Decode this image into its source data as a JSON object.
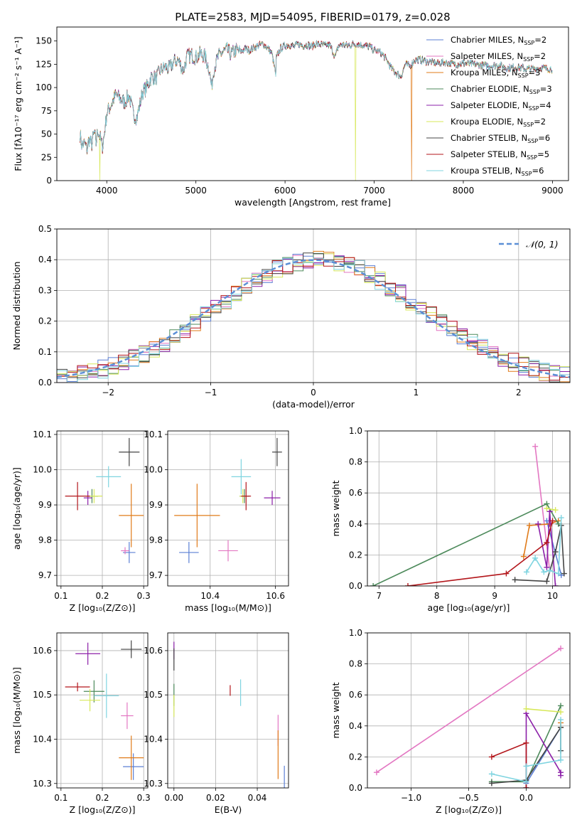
{
  "colors": {
    "series": [
      "#5b7fd4",
      "#e377c2",
      "#e07b1a",
      "#4d8a5b",
      "#8b1fa8",
      "#d7e85a",
      "#444444",
      "#b3161b",
      "#7fd4e0"
    ]
  },
  "chart_data": [
    {
      "id": "spectrum",
      "type": "line",
      "title": "PLATE=2583, MJD=54095, FIBERID=0179, z=0.028",
      "xlabel": "wavelength [Angstrom, rest frame]",
      "ylabel": "Flux [fλ10⁻¹⁷ erg cm⁻² s⁻¹ A⁻¹]",
      "xlim": [
        3440,
        9180
      ],
      "ylim": [
        0,
        165
      ],
      "xticks": [
        4000,
        5000,
        6000,
        7000,
        8000,
        9000
      ],
      "yticks": [
        0,
        25,
        50,
        75,
        100,
        125,
        150
      ],
      "grid": false,
      "legend_position": "top-right",
      "spectrum_x": [
        3700,
        3720,
        3750,
        3780,
        3800,
        3830,
        3860,
        3880,
        3900,
        3930,
        3950,
        3970,
        4000,
        4050,
        4100,
        4150,
        4200,
        4250,
        4300,
        4340,
        4400,
        4450,
        4500,
        4550,
        4600,
        4650,
        4700,
        4750,
        4800,
        4860,
        4900,
        4950,
        5000,
        5050,
        5100,
        5150,
        5175,
        5200,
        5250,
        5300,
        5350,
        5400,
        5450,
        5500,
        5550,
        5600,
        5650,
        5700,
        5750,
        5800,
        5850,
        5890,
        5895,
        5900,
        5950,
        6000,
        6050,
        6100,
        6150,
        6200,
        6250,
        6300,
        6350,
        6400,
        6450,
        6500,
        6563,
        6600,
        6650,
        6700,
        6750,
        6800,
        6850,
        6900,
        6950,
        7000,
        7050,
        7100,
        7150,
        7200,
        7250,
        7300,
        7350,
        7400,
        7450,
        7500,
        7600,
        7700,
        7800,
        7900,
        8000,
        8100,
        8200,
        8300,
        8400,
        8500,
        8600,
        8700,
        8800,
        8900,
        9000
      ],
      "spectrum_y": [
        50,
        38,
        40,
        33,
        45,
        38,
        52,
        40,
        55,
        45,
        36,
        48,
        72,
        82,
        92,
        88,
        84,
        92,
        70,
        68,
        95,
        100,
        112,
        110,
        118,
        122,
        120,
        127,
        130,
        118,
        133,
        135,
        132,
        136,
        134,
        120,
        100,
        120,
        133,
        138,
        140,
        136,
        140,
        138,
        142,
        140,
        143,
        145,
        147,
        143,
        137,
        118,
        105,
        132,
        142,
        145,
        146,
        144,
        147,
        145,
        146,
        144,
        147,
        146,
        145,
        146,
        133,
        145,
        146,
        145,
        146,
        147,
        146,
        145,
        144,
        140,
        139,
        135,
        128,
        120,
        115,
        112,
        125,
        123,
        129,
        130,
        128,
        126,
        127,
        125,
        126,
        125,
        124,
        123,
        124,
        121,
        122,
        120,
        120,
        121,
        120
      ],
      "dropouts": [
        {
          "series": 5,
          "x": 3920
        },
        {
          "series": 5,
          "x": 6790
        },
        {
          "series": 2,
          "x": 7420
        }
      ],
      "legend": [
        {
          "label": "Chabrier MILES, N",
          "sub": "SSP",
          "suffix": "=2"
        },
        {
          "label": "Salpeter MILES, N",
          "sub": "SSP",
          "suffix": "=2"
        },
        {
          "label": "Kroupa MILES, N",
          "sub": "SSP",
          "suffix": "=3"
        },
        {
          "label": "Chabrier ELODIE, N",
          "sub": "SSP",
          "suffix": "=3"
        },
        {
          "label": "Salpeter ELODIE, N",
          "sub": "SSP",
          "suffix": "=4"
        },
        {
          "label": "Kroupa ELODIE, N",
          "sub": "SSP",
          "suffix": "=2"
        },
        {
          "label": "Chabrier STELIB, N",
          "sub": "SSP",
          "suffix": "=6"
        },
        {
          "label": "Salpeter STELIB, N",
          "sub": "SSP",
          "suffix": "=5"
        },
        {
          "label": "Kroupa STELIB, N",
          "sub": "SSP",
          "suffix": "=6"
        }
      ]
    },
    {
      "id": "residuals",
      "type": "bar",
      "xlabel": "(data-model)/error",
      "ylabel": "Normed distribution",
      "xlim": [
        -2.5,
        2.5
      ],
      "ylim": [
        0,
        0.5
      ],
      "xticks": [
        -2,
        -1,
        0,
        1,
        2
      ],
      "yticks": [
        0.0,
        0.1,
        0.2,
        0.3,
        0.4,
        0.5
      ],
      "grid": true,
      "legend_position": "top-right",
      "legend_label": "𝒩(0, 1)",
      "bin_width": 0.1,
      "bin_start": -2.5
    },
    {
      "id": "age-vs-Z",
      "type": "scatter",
      "xlabel": "Z [log₁₀(Z/Z⊙)]",
      "ylabel": "age  [log₁₀(age/yr)]",
      "xlim": [
        0.09,
        0.31
      ],
      "ylim": [
        9.67,
        10.11
      ],
      "xticks": [
        0.1,
        0.2,
        0.3
      ],
      "yticks": [
        9.7,
        9.8,
        9.9,
        10.0,
        10.1
      ],
      "grid": true,
      "points": [
        {
          "series": 0,
          "x": 0.265,
          "y": 9.765,
          "xerr": 0.015,
          "yerr": 0.03
        },
        {
          "series": 1,
          "x": 0.255,
          "y": 9.77,
          "xerr": 0.01,
          "yerr": 0.01
        },
        {
          "series": 2,
          "x": 0.27,
          "y": 9.87,
          "xerr": 0.03,
          "yerr": 0.09
        },
        {
          "series": 3,
          "x": 0.175,
          "y": 9.925,
          "xerr": 0.015,
          "yerr": 0.02
        },
        {
          "series": 4,
          "x": 0.165,
          "y": 9.92,
          "xerr": 0.01,
          "yerr": 0.02
        },
        {
          "series": 5,
          "x": 0.18,
          "y": 9.925,
          "xerr": 0.02,
          "yerr": 0.02
        },
        {
          "series": 6,
          "x": 0.265,
          "y": 10.05,
          "xerr": 0.025,
          "yerr": 0.04
        },
        {
          "series": 7,
          "x": 0.14,
          "y": 9.925,
          "xerr": 0.03,
          "yerr": 0.04
        },
        {
          "series": 8,
          "x": 0.215,
          "y": 9.98,
          "xerr": 0.03,
          "yerr": 0.03
        }
      ]
    },
    {
      "id": "age-vs-mass",
      "type": "scatter",
      "xlabel": "mass [log₁₀(M/M⊙)]",
      "ylabel": "",
      "xlim": [
        10.27,
        10.64
      ],
      "ylim": [
        9.67,
        10.11
      ],
      "xticks": [
        10.4,
        10.6
      ],
      "yticks": [
        9.7,
        9.8,
        9.9,
        10.0,
        10.1
      ],
      "grid": true,
      "points": [
        {
          "series": 0,
          "x": 10.335,
          "y": 9.765,
          "xerr": 0.03,
          "yerr": 0.03
        },
        {
          "series": 1,
          "x": 10.455,
          "y": 9.77,
          "xerr": 0.03,
          "yerr": 0.03
        },
        {
          "series": 2,
          "x": 10.36,
          "y": 9.87,
          "xerr": 0.07,
          "yerr": 0.09
        },
        {
          "series": 3,
          "x": 10.505,
          "y": 9.925,
          "xerr": 0.015,
          "yerr": 0.02
        },
        {
          "series": 4,
          "x": 10.59,
          "y": 9.92,
          "xerr": 0.025,
          "yerr": 0.02
        },
        {
          "series": 5,
          "x": 10.5,
          "y": 9.925,
          "xerr": 0.01,
          "yerr": 0.02
        },
        {
          "series": 6,
          "x": 10.605,
          "y": 10.05,
          "xerr": 0.015,
          "yerr": 0.04
        },
        {
          "series": 7,
          "x": 10.51,
          "y": 9.925,
          "xerr": 0.015,
          "yerr": 0.04
        },
        {
          "series": 8,
          "x": 10.495,
          "y": 9.98,
          "xerr": 0.03,
          "yerr": 0.05
        }
      ]
    },
    {
      "id": "weight-vs-age",
      "type": "line",
      "xlabel": "age  [log₁₀(age/yr)]",
      "ylabel": "mass weight",
      "xlim": [
        6.8,
        10.3
      ],
      "ylim": [
        0.0,
        1.0
      ],
      "xticks": [
        7,
        8,
        9,
        10
      ],
      "yticks": [
        0.0,
        0.2,
        0.4,
        0.6,
        0.8,
        1.0
      ],
      "grid": true,
      "series": [
        {
          "series": 0,
          "x": [
            9.9,
            10.15
          ],
          "y": [
            0.42,
            0.07
          ]
        },
        {
          "series": 1,
          "x": [
            9.7,
            9.95
          ],
          "y": [
            0.9,
            0.1
          ]
        },
        {
          "series": 2,
          "x": [
            9.5,
            9.6,
            9.95,
            10.1
          ],
          "y": [
            0.19,
            0.39,
            0.4,
            0.42
          ]
        },
        {
          "series": 3,
          "x": [
            6.9,
            9.9,
            10.1
          ],
          "y": [
            0.0,
            0.53,
            0.4
          ]
        },
        {
          "series": 4,
          "x": [
            9.75,
            9.9,
            9.95,
            10.05
          ],
          "y": [
            0.4,
            0.12,
            0.48,
            0.0
          ]
        },
        {
          "series": 5,
          "x": [
            9.9,
            10.05
          ],
          "y": [
            0.5,
            0.49
          ]
        },
        {
          "series": 6,
          "x": [
            9.35,
            9.9,
            10.05,
            10.15,
            10.2
          ],
          "y": [
            0.04,
            0.03,
            0.22,
            0.39,
            0.08
          ]
        },
        {
          "series": 7,
          "x": [
            7.5,
            9.2,
            9.9,
            10.0
          ],
          "y": [
            0.0,
            0.08,
            0.28,
            0.42
          ]
        },
        {
          "series": 8,
          "x": [
            9.55,
            9.7,
            9.85,
            9.95,
            10.1,
            10.15
          ],
          "y": [
            0.09,
            0.18,
            0.09,
            0.1,
            0.08,
            0.44
          ]
        }
      ]
    },
    {
      "id": "mass-vs-Z",
      "type": "scatter",
      "xlabel": "Z [log₁₀(Z/Z⊙)]",
      "ylabel": "mass [log₁₀(M/M⊙)]",
      "xlim": [
        0.09,
        0.31
      ],
      "ylim": [
        10.29,
        10.64
      ],
      "xticks": [
        0.1,
        0.2,
        0.3
      ],
      "yticks": [
        10.3,
        10.4,
        10.5,
        10.6
      ],
      "grid": true,
      "points": [
        {
          "series": 0,
          "x": 0.275,
          "y": 10.338,
          "xerr": 0.025,
          "yerr": 0.03
        },
        {
          "series": 1,
          "x": 0.26,
          "y": 10.453,
          "xerr": 0.015,
          "yerr": 0.03
        },
        {
          "series": 2,
          "x": 0.27,
          "y": 10.358,
          "xerr": 0.03,
          "yerr": 0.05
        },
        {
          "series": 3,
          "x": 0.18,
          "y": 10.508,
          "xerr": 0.025,
          "yerr": 0.025
        },
        {
          "series": 4,
          "x": 0.165,
          "y": 10.593,
          "xerr": 0.03,
          "yerr": 0.025
        },
        {
          "series": 5,
          "x": 0.17,
          "y": 10.488,
          "xerr": 0.025,
          "yerr": 0.025
        },
        {
          "series": 6,
          "x": 0.27,
          "y": 10.603,
          "xerr": 0.025,
          "yerr": 0.02
        },
        {
          "series": 7,
          "x": 0.14,
          "y": 10.518,
          "xerr": 0.03,
          "yerr": 0.01
        },
        {
          "series": 8,
          "x": 0.21,
          "y": 10.498,
          "xerr": 0.03,
          "yerr": 0.05
        }
      ]
    },
    {
      "id": "mass-vs-EBV",
      "type": "scatter",
      "xlabel": "E(B-V)",
      "ylabel": "",
      "xlim": [
        -0.003,
        0.055
      ],
      "ylim": [
        10.29,
        10.64
      ],
      "xticks": [
        0.0,
        0.02,
        0.04
      ],
      "yticks": [
        10.3,
        10.4,
        10.5,
        10.6
      ],
      "grid": true,
      "points": [
        {
          "series": 0,
          "x": 0.053,
          "y": 10.315,
          "xerr": 0.0,
          "yerr": 0.025
        },
        {
          "series": 1,
          "x": 0.05,
          "y": 10.42,
          "xerr": 0.0,
          "yerr": 0.035
        },
        {
          "series": 2,
          "x": 0.05,
          "y": 10.365,
          "xerr": 0.0,
          "yerr": 0.055
        },
        {
          "series": 3,
          "x": 0.0,
          "y": 10.5,
          "xerr": 0.0,
          "yerr": 0.025
        },
        {
          "series": 4,
          "x": 0.0,
          "y": 10.6,
          "xerr": 0.0,
          "yerr": 0.02
        },
        {
          "series": 5,
          "x": 0.0,
          "y": 10.475,
          "xerr": 0.0,
          "yerr": 0.025
        },
        {
          "series": 6,
          "x": 0.0,
          "y": 10.58,
          "xerr": 0.0,
          "yerr": 0.025
        },
        {
          "series": 7,
          "x": 0.027,
          "y": 10.51,
          "xerr": 0.0,
          "yerr": 0.012
        },
        {
          "series": 8,
          "x": 0.032,
          "y": 10.505,
          "xerr": 0.0,
          "yerr": 0.03
        }
      ]
    },
    {
      "id": "weight-vs-Z",
      "type": "line",
      "xlabel": "Z [log₁₀(Z/Z⊙)]",
      "ylabel": "mass weight",
      "xlim": [
        -1.38,
        0.38
      ],
      "ylim": [
        0.0,
        1.0
      ],
      "xticks": [
        -1.0,
        -0.5,
        0.0
      ],
      "yticks": [
        0.0,
        0.2,
        0.4,
        0.6,
        0.8,
        1.0
      ],
      "grid": true,
      "series": [
        {
          "series": 0,
          "x": [
            0.0,
            0.3
          ],
          "y": [
            0.03,
            0.39
          ]
        },
        {
          "series": 1,
          "x": [
            -1.3,
            0.3
          ],
          "y": [
            0.1,
            0.9
          ]
        },
        {
          "series": 2,
          "x": [
            0.3,
            0.3
          ],
          "y": [
            0.39,
            0.42
          ]
        },
        {
          "series": 3,
          "x": [
            -0.3,
            0.0,
            0.3
          ],
          "y": [
            0.04,
            0.04,
            0.53
          ]
        },
        {
          "series": 4,
          "x": [
            0.0,
            0.0,
            0.3,
            0.3
          ],
          "y": [
            0.0,
            0.48,
            0.1,
            0.08
          ]
        },
        {
          "series": 5,
          "x": [
            0.0,
            0.3
          ],
          "y": [
            0.51,
            0.49
          ]
        },
        {
          "series": 6,
          "x": [
            -0.3,
            0.0,
            0.3,
            0.3
          ],
          "y": [
            0.03,
            0.05,
            0.39,
            0.24
          ]
        },
        {
          "series": 7,
          "x": [
            -0.3,
            0.0,
            0.0
          ],
          "y": [
            0.2,
            0.29,
            0.0
          ]
        },
        {
          "series": 8,
          "x": [
            -0.3,
            0.0,
            0.0,
            0.3,
            0.3
          ],
          "y": [
            0.09,
            0.04,
            0.14,
            0.18,
            0.44
          ]
        }
      ]
    }
  ]
}
